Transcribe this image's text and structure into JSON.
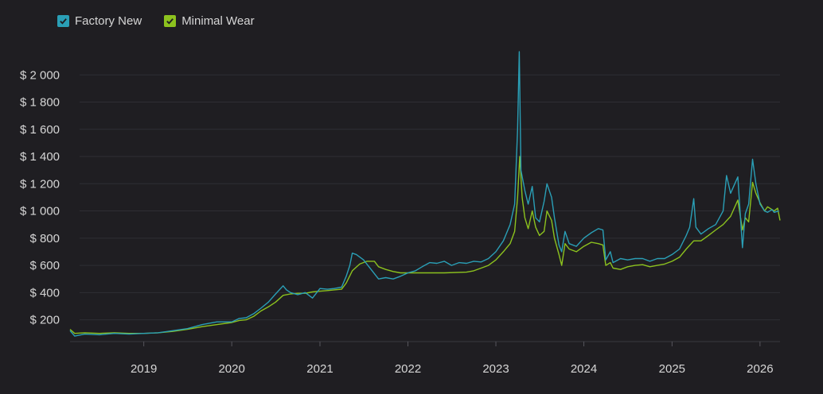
{
  "legend": {
    "items": [
      {
        "label": "Factory New",
        "color": "#2a9fb6",
        "checked": true
      },
      {
        "label": "Minimal Wear",
        "color": "#8cc21e",
        "checked": true
      }
    ]
  },
  "chart_data": {
    "type": "line",
    "title": "",
    "xlabel": "",
    "ylabel": "",
    "y_ticks": [
      200,
      400,
      600,
      800,
      1000,
      1200,
      1400,
      1600,
      1800,
      2000
    ],
    "y_tick_labels": [
      "$ 200",
      "$ 400",
      "$ 600",
      "$ 800",
      "$ 1 000",
      "$ 1 200",
      "$ 1 400",
      "$ 1 600",
      "$ 1 800",
      "$ 2 000"
    ],
    "x_ticks": [
      "2019",
      "2020",
      "2021",
      "2022",
      "2023",
      "2024",
      "2025",
      "2026"
    ],
    "xlim": [
      "2018-03-01",
      "2026-03-25"
    ],
    "ylim": [
      40,
      2200
    ],
    "grid": true,
    "legend_position": "top-left",
    "series": [
      {
        "name": "Factory New",
        "color": "#2a9fb6",
        "points": [
          [
            "2018-03-01",
            120
          ],
          [
            "2018-03-20",
            80
          ],
          [
            "2018-05-01",
            95
          ],
          [
            "2018-07-01",
            90
          ],
          [
            "2018-09-01",
            100
          ],
          [
            "2018-11-01",
            95
          ],
          [
            "2019-01-01",
            100
          ],
          [
            "2019-03-01",
            105
          ],
          [
            "2019-05-01",
            120
          ],
          [
            "2019-07-01",
            135
          ],
          [
            "2019-09-01",
            165
          ],
          [
            "2019-11-01",
            185
          ],
          [
            "2020-01-01",
            185
          ],
          [
            "2020-02-01",
            210
          ],
          [
            "2020-03-01",
            215
          ],
          [
            "2020-04-01",
            245
          ],
          [
            "2020-05-01",
            285
          ],
          [
            "2020-06-01",
            330
          ],
          [
            "2020-07-01",
            390
          ],
          [
            "2020-08-01",
            450
          ],
          [
            "2020-08-15",
            420
          ],
          [
            "2020-09-01",
            400
          ],
          [
            "2020-10-01",
            385
          ],
          [
            "2020-11-01",
            400
          ],
          [
            "2020-12-01",
            360
          ],
          [
            "2021-01-01",
            430
          ],
          [
            "2021-02-01",
            425
          ],
          [
            "2021-03-01",
            430
          ],
          [
            "2021-04-01",
            440
          ],
          [
            "2021-04-20",
            520
          ],
          [
            "2021-05-05",
            600
          ],
          [
            "2021-05-15",
            690
          ],
          [
            "2021-06-01",
            680
          ],
          [
            "2021-07-01",
            640
          ],
          [
            "2021-08-01",
            570
          ],
          [
            "2021-09-01",
            500
          ],
          [
            "2021-10-01",
            510
          ],
          [
            "2021-11-01",
            500
          ],
          [
            "2021-12-01",
            520
          ],
          [
            "2022-01-01",
            545
          ],
          [
            "2022-02-01",
            560
          ],
          [
            "2022-03-01",
            590
          ],
          [
            "2022-04-01",
            620
          ],
          [
            "2022-05-01",
            615
          ],
          [
            "2022-06-01",
            630
          ],
          [
            "2022-07-01",
            600
          ],
          [
            "2022-08-01",
            620
          ],
          [
            "2022-09-01",
            615
          ],
          [
            "2022-10-01",
            630
          ],
          [
            "2022-11-01",
            625
          ],
          [
            "2022-12-01",
            650
          ],
          [
            "2023-01-01",
            700
          ],
          [
            "2023-02-01",
            780
          ],
          [
            "2023-03-01",
            900
          ],
          [
            "2023-03-20",
            1050
          ],
          [
            "2023-04-01",
            1600
          ],
          [
            "2023-04-08",
            2170
          ],
          [
            "2023-04-15",
            1300
          ],
          [
            "2023-05-01",
            1150
          ],
          [
            "2023-05-15",
            1050
          ],
          [
            "2023-06-01",
            1180
          ],
          [
            "2023-06-15",
            950
          ],
          [
            "2023-07-01",
            920
          ],
          [
            "2023-07-20",
            1070
          ],
          [
            "2023-08-01",
            1200
          ],
          [
            "2023-08-20",
            1100
          ],
          [
            "2023-09-01",
            950
          ],
          [
            "2023-09-20",
            750
          ],
          [
            "2023-10-01",
            700
          ],
          [
            "2023-10-15",
            850
          ],
          [
            "2023-11-01",
            760
          ],
          [
            "2023-12-01",
            740
          ],
          [
            "2024-01-01",
            800
          ],
          [
            "2024-02-01",
            840
          ],
          [
            "2024-03-01",
            870
          ],
          [
            "2024-03-20",
            860
          ],
          [
            "2024-04-01",
            640
          ],
          [
            "2024-04-20",
            700
          ],
          [
            "2024-05-01",
            620
          ],
          [
            "2024-06-01",
            650
          ],
          [
            "2024-07-01",
            640
          ],
          [
            "2024-08-01",
            650
          ],
          [
            "2024-09-01",
            650
          ],
          [
            "2024-10-01",
            630
          ],
          [
            "2024-11-01",
            650
          ],
          [
            "2024-12-01",
            650
          ],
          [
            "2025-01-01",
            680
          ],
          [
            "2025-02-01",
            720
          ],
          [
            "2025-03-01",
            820
          ],
          [
            "2025-03-15",
            880
          ],
          [
            "2025-04-01",
            1090
          ],
          [
            "2025-04-10",
            880
          ],
          [
            "2025-05-01",
            830
          ],
          [
            "2025-06-01",
            870
          ],
          [
            "2025-07-01",
            900
          ],
          [
            "2025-08-01",
            1000
          ],
          [
            "2025-08-15",
            1260
          ],
          [
            "2025-09-01",
            1130
          ],
          [
            "2025-10-01",
            1250
          ],
          [
            "2025-10-20",
            730
          ],
          [
            "2025-11-01",
            980
          ],
          [
            "2025-11-15",
            1050
          ],
          [
            "2025-12-01",
            1380
          ],
          [
            "2025-12-15",
            1200
          ],
          [
            "2026-01-01",
            1050
          ],
          [
            "2026-01-20",
            1000
          ],
          [
            "2026-02-01",
            990
          ],
          [
            "2026-02-20",
            1010
          ],
          [
            "2026-03-01",
            990
          ],
          [
            "2026-03-20",
            1000
          ]
        ]
      },
      {
        "name": "Minimal Wear",
        "color": "#8cc21e",
        "points": [
          [
            "2018-03-01",
            130
          ],
          [
            "2018-03-20",
            100
          ],
          [
            "2018-05-01",
            105
          ],
          [
            "2018-07-01",
            100
          ],
          [
            "2018-09-01",
            105
          ],
          [
            "2018-11-01",
            100
          ],
          [
            "2019-01-01",
            100
          ],
          [
            "2019-03-01",
            105
          ],
          [
            "2019-05-01",
            115
          ],
          [
            "2019-07-01",
            130
          ],
          [
            "2019-09-01",
            150
          ],
          [
            "2019-11-01",
            165
          ],
          [
            "2020-01-01",
            180
          ],
          [
            "2020-02-01",
            195
          ],
          [
            "2020-03-01",
            200
          ],
          [
            "2020-04-01",
            225
          ],
          [
            "2020-05-01",
            265
          ],
          [
            "2020-06-01",
            295
          ],
          [
            "2020-07-01",
            330
          ],
          [
            "2020-08-01",
            380
          ],
          [
            "2020-09-01",
            390
          ],
          [
            "2020-10-01",
            395
          ],
          [
            "2020-11-01",
            395
          ],
          [
            "2020-12-01",
            405
          ],
          [
            "2021-01-01",
            410
          ],
          [
            "2021-02-01",
            415
          ],
          [
            "2021-03-01",
            420
          ],
          [
            "2021-04-01",
            425
          ],
          [
            "2021-04-20",
            470
          ],
          [
            "2021-05-15",
            560
          ],
          [
            "2021-06-15",
            610
          ],
          [
            "2021-07-15",
            630
          ],
          [
            "2021-08-15",
            630
          ],
          [
            "2021-09-01",
            590
          ],
          [
            "2021-10-01",
            570
          ],
          [
            "2021-11-01",
            555
          ],
          [
            "2021-12-01",
            545
          ],
          [
            "2022-01-01",
            545
          ],
          [
            "2022-03-01",
            545
          ],
          [
            "2022-06-01",
            545
          ],
          [
            "2022-09-01",
            550
          ],
          [
            "2022-10-01",
            560
          ],
          [
            "2022-11-01",
            580
          ],
          [
            "2022-12-01",
            600
          ],
          [
            "2023-01-01",
            640
          ],
          [
            "2023-02-01",
            700
          ],
          [
            "2023-03-01",
            760
          ],
          [
            "2023-03-20",
            850
          ],
          [
            "2023-04-01",
            1100
          ],
          [
            "2023-04-10",
            1400
          ],
          [
            "2023-04-20",
            1100
          ],
          [
            "2023-05-01",
            950
          ],
          [
            "2023-05-15",
            870
          ],
          [
            "2023-06-01",
            1000
          ],
          [
            "2023-06-15",
            880
          ],
          [
            "2023-07-01",
            820
          ],
          [
            "2023-07-20",
            850
          ],
          [
            "2023-08-01",
            1000
          ],
          [
            "2023-08-20",
            930
          ],
          [
            "2023-09-01",
            800
          ],
          [
            "2023-09-20",
            680
          ],
          [
            "2023-10-01",
            600
          ],
          [
            "2023-10-15",
            760
          ],
          [
            "2023-11-01",
            720
          ],
          [
            "2023-12-01",
            700
          ],
          [
            "2024-01-01",
            740
          ],
          [
            "2024-02-01",
            770
          ],
          [
            "2024-03-01",
            760
          ],
          [
            "2024-03-20",
            750
          ],
          [
            "2024-04-01",
            600
          ],
          [
            "2024-04-20",
            620
          ],
          [
            "2024-05-01",
            580
          ],
          [
            "2024-06-01",
            570
          ],
          [
            "2024-07-01",
            590
          ],
          [
            "2024-08-01",
            600
          ],
          [
            "2024-09-01",
            605
          ],
          [
            "2024-10-01",
            590
          ],
          [
            "2024-11-01",
            600
          ],
          [
            "2024-12-01",
            610
          ],
          [
            "2025-01-01",
            630
          ],
          [
            "2025-02-01",
            660
          ],
          [
            "2025-03-01",
            720
          ],
          [
            "2025-04-01",
            780
          ],
          [
            "2025-05-01",
            780
          ],
          [
            "2025-06-01",
            820
          ],
          [
            "2025-07-01",
            860
          ],
          [
            "2025-08-01",
            900
          ],
          [
            "2025-09-01",
            960
          ],
          [
            "2025-10-01",
            1080
          ],
          [
            "2025-10-20",
            860
          ],
          [
            "2025-11-01",
            950
          ],
          [
            "2025-11-15",
            920
          ],
          [
            "2025-12-01",
            1210
          ],
          [
            "2025-12-15",
            1130
          ],
          [
            "2026-01-01",
            1060
          ],
          [
            "2026-01-20",
            1000
          ],
          [
            "2026-02-01",
            1030
          ],
          [
            "2026-02-20",
            1010
          ],
          [
            "2026-03-01",
            1000
          ],
          [
            "2026-03-15",
            1020
          ],
          [
            "2026-03-25",
            930
          ]
        ]
      }
    ]
  }
}
